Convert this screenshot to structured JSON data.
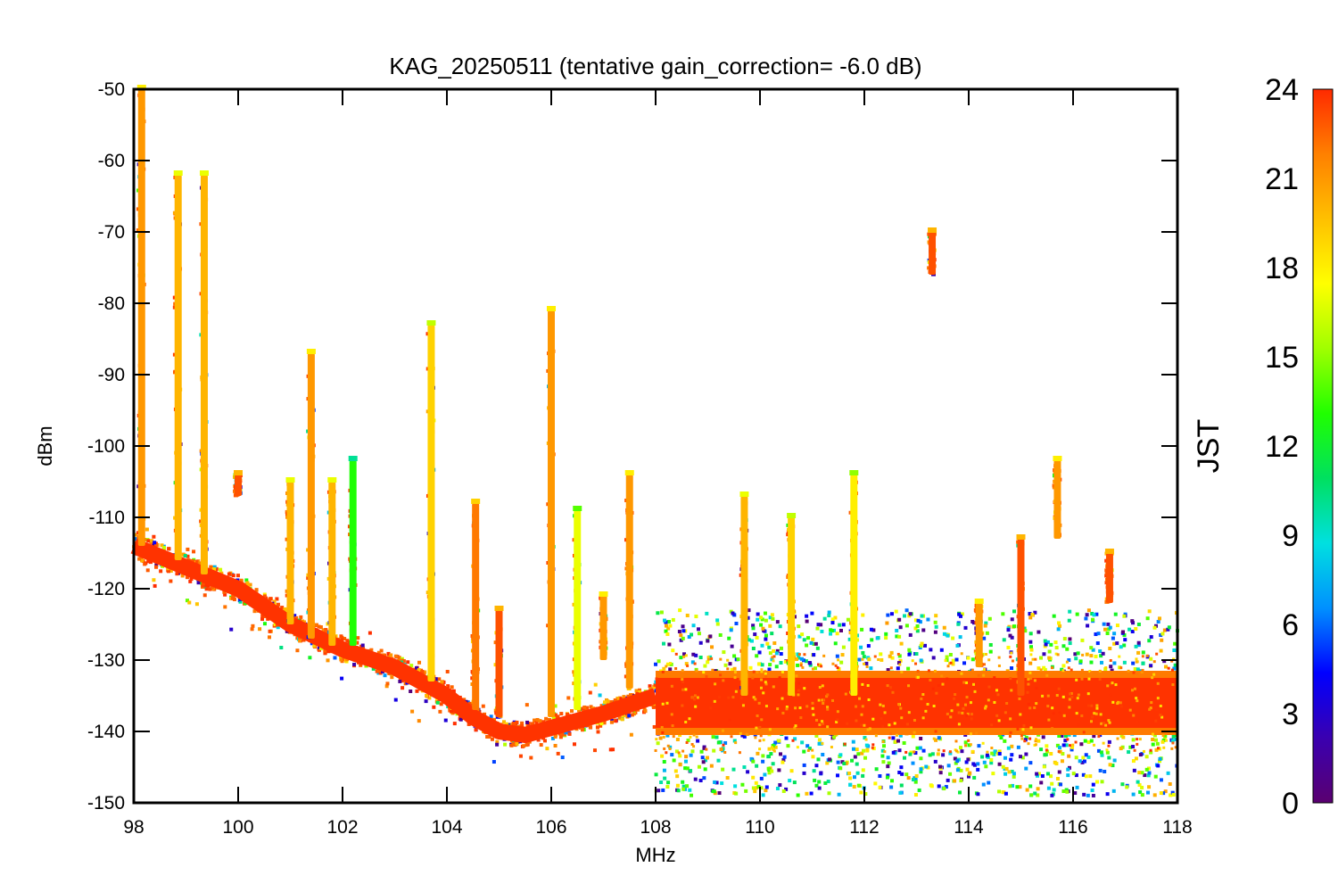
{
  "chart_data": {
    "type": "scatter",
    "title": "KAG_20250511 (tentative gain_correction= -6.0 dB)",
    "xlabel": "MHz",
    "ylabel": "dBm",
    "xlim": [
      98,
      118
    ],
    "ylim": [
      -150,
      -50
    ],
    "xticks": [
      "98",
      "100",
      "102",
      "104",
      "106",
      "108",
      "110",
      "112",
      "114",
      "116",
      "118"
    ],
    "yticks": [
      "-50",
      "-60",
      "-70",
      "-80",
      "-90",
      "-100",
      "-110",
      "-120",
      "-130",
      "-140",
      "-150"
    ],
    "grid": false,
    "colorbar": {
      "label": "JST",
      "range": [
        0,
        24
      ],
      "ticks": [
        "0",
        "3",
        "6",
        "9",
        "12",
        "15",
        "18",
        "21",
        "24"
      ],
      "colors": [
        "#5a0070",
        "#3a00b0",
        "#0000ff",
        "#0090ff",
        "#00e0e0",
        "#00e060",
        "#20ff00",
        "#a0ff00",
        "#ffff00",
        "#ffc000",
        "#ff8000",
        "#ff2a00"
      ]
    },
    "noise_floor": [
      {
        "x": 98.0,
        "y": -114
      },
      {
        "x": 99.0,
        "y": -117
      },
      {
        "x": 100.0,
        "y": -120
      },
      {
        "x": 101.0,
        "y": -125
      },
      {
        "x": 102.0,
        "y": -128.5
      },
      {
        "x": 103.0,
        "y": -131
      },
      {
        "x": 104.0,
        "y": -135
      },
      {
        "x": 104.5,
        "y": -138
      },
      {
        "x": 105.0,
        "y": -140
      },
      {
        "x": 105.5,
        "y": -140.5
      },
      {
        "x": 106.0,
        "y": -139.5
      },
      {
        "x": 107.0,
        "y": -137.5
      },
      {
        "x": 108.0,
        "y": -135
      }
    ],
    "band_108_118": {
      "x_range": [
        108,
        118
      ],
      "y_range": [
        -143,
        -129
      ],
      "center": -136
    },
    "signals": [
      {
        "x": 98.15,
        "y_top": -50,
        "y_bottom": -114,
        "jst": 21
      },
      {
        "x": 98.85,
        "y_top": -62,
        "y_bottom": -116,
        "jst": 20
      },
      {
        "x": 99.35,
        "y_top": -62,
        "y_bottom": -118,
        "jst": 20
      },
      {
        "x": 100.0,
        "y_top": -104,
        "y_bottom": -107,
        "jst": 23
      },
      {
        "x": 101.0,
        "y_top": -105,
        "y_bottom": -125,
        "jst": 20
      },
      {
        "x": 101.4,
        "y_top": -87,
        "y_bottom": -127,
        "jst": 21
      },
      {
        "x": 101.8,
        "y_top": -105,
        "y_bottom": -128,
        "jst": 20
      },
      {
        "x": 102.2,
        "y_top": -102,
        "y_bottom": -128,
        "jst": 13
      },
      {
        "x": 103.7,
        "y_top": -83,
        "y_bottom": -133,
        "jst": 19
      },
      {
        "x": 104.55,
        "y_top": -108,
        "y_bottom": -137,
        "jst": 22
      },
      {
        "x": 105.0,
        "y_top": -123,
        "y_bottom": -138,
        "jst": 23
      },
      {
        "x": 106.0,
        "y_top": -81,
        "y_bottom": -138,
        "jst": 21
      },
      {
        "x": 106.5,
        "y_top": -109,
        "y_bottom": -137,
        "jst": 17
      },
      {
        "x": 107.0,
        "y_top": -121,
        "y_bottom": -130,
        "jst": 21
      },
      {
        "x": 107.5,
        "y_top": -104,
        "y_bottom": -134,
        "jst": 21
      },
      {
        "x": 109.7,
        "y_top": -107,
        "y_bottom": -135,
        "jst": 20
      },
      {
        "x": 110.6,
        "y_top": -110,
        "y_bottom": -135,
        "jst": 19
      },
      {
        "x": 111.8,
        "y_top": -104,
        "y_bottom": -135,
        "jst": 18
      },
      {
        "x": 113.3,
        "y_top": -70,
        "y_bottom": -76,
        "jst": 23
      },
      {
        "x": 114.2,
        "y_top": -122,
        "y_bottom": -131,
        "jst": 21
      },
      {
        "x": 115.0,
        "y_top": -113,
        "y_bottom": -135,
        "jst": 23
      },
      {
        "x": 115.7,
        "y_top": -102,
        "y_bottom": -113,
        "jst": 21
      },
      {
        "x": 116.7,
        "y_top": -115,
        "y_bottom": -122,
        "jst": 23
      }
    ]
  }
}
